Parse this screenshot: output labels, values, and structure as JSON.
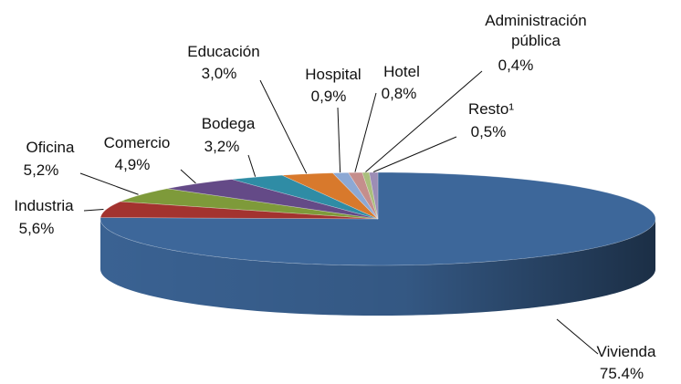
{
  "chart_data": {
    "type": "pie",
    "categories": [
      "Vivienda",
      "Industria",
      "Oficina",
      "Comercio",
      "Bodega",
      "Educación",
      "Hospital",
      "Hotel",
      "Administración pública",
      "Resto¹"
    ],
    "values": [
      75.4,
      5.6,
      5.2,
      4.9,
      3.2,
      3.0,
      0.9,
      0.8,
      0.4,
      0.5
    ],
    "value_labels": [
      "75.4%",
      "5,6%",
      "5,2%",
      "4,9%",
      "3,2%",
      "3,0%",
      "0,9%",
      "0,8%",
      "0,4%",
      "0,5%"
    ],
    "colors": [
      "#3d679a",
      "#a3332f",
      "#7e9a3a",
      "#644a87",
      "#2f8ca5",
      "#d8792c",
      "#8ca8d4",
      "#c58e8c",
      "#aabe7c",
      "#9c8db5"
    ]
  }
}
